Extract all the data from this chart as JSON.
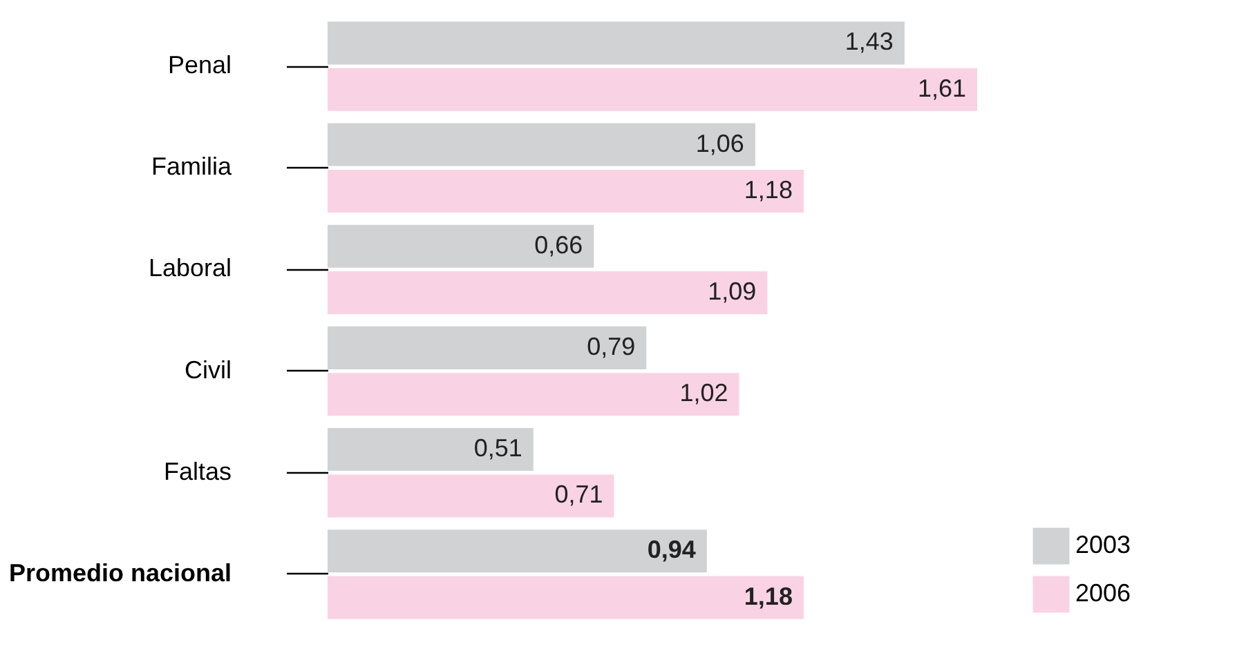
{
  "chart_data": {
    "type": "bar",
    "orientation": "horizontal",
    "categories": [
      "Penal",
      "Familia",
      "Laboral",
      "Civil",
      "Faltas",
      "Promedio nacional"
    ],
    "series": [
      {
        "name": "2003",
        "color": "#d1d2d4",
        "values": [
          1.43,
          1.06,
          0.66,
          0.79,
          0.51,
          0.94
        ],
        "value_labels": [
          "1,43",
          "1,06",
          "0,66",
          "0,79",
          "0,51",
          "0,94"
        ]
      },
      {
        "name": "2006",
        "color": "#f9d3e3",
        "values": [
          1.61,
          1.18,
          1.09,
          1.02,
          0.71,
          1.18
        ],
        "value_labels": [
          "1,61",
          "1,18",
          "1,09",
          "1,02",
          "0,71",
          "1,18"
        ]
      }
    ],
    "legend": "bottom right"
  }
}
